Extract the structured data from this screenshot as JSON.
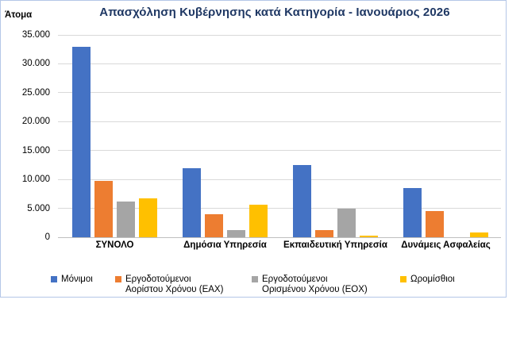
{
  "window": {
    "background_color": "#ffffff",
    "frame_border_color": "#b4c7e7"
  },
  "chart": {
    "title": "Απασχόληση Κυβέρνησης κατά Κατηγορία - Ιανουάριος 2026",
    "y_axis_title": "Άτομα",
    "title_color": "#1f3864"
  },
  "chart_data": {
    "type": "bar",
    "title": "Απασχόληση Κυβέρνησης κατά Κατηγορία - Ιανουάριος 2026",
    "xlabel": "",
    "ylabel": "Άτομα",
    "categories": [
      "ΣΥΝΟΛΟ",
      "Δημόσια Υπηρεσία",
      "Εκπαιδευτική Υπηρεσία",
      "Δυνάμεις Ασφαλείας"
    ],
    "series": [
      {
        "name": "Μόνιμοι",
        "color": "#4472c4",
        "values": [
          33000,
          12000,
          12500,
          8500
        ]
      },
      {
        "name": "Εργοδοτούμενοι Αορίστου Χρόνου (ΕΑΧ)",
        "color": "#ed7d31",
        "values": [
          9700,
          4000,
          1200,
          4500
        ]
      },
      {
        "name": "Εργοδοτούμενοι Ορισμένου Χρόνου (ΕΟΧ)",
        "color": "#a5a5a5",
        "values": [
          6200,
          1300,
          4900,
          0
        ]
      },
      {
        "name": "Ωρομίσθιοι",
        "color": "#ffc000",
        "values": [
          6700,
          5600,
          300,
          800
        ]
      }
    ],
    "ylim": [
      0,
      35000
    ],
    "ytick_step": 5000,
    "ytick_labels": [
      "0",
      "5.000",
      "10.000",
      "15.000",
      "20.000",
      "25.000",
      "30.000",
      "35.000"
    ],
    "grid": true,
    "gridline_color": "#d9d9d9",
    "axis_line_color": "#bfbfbf",
    "legend_position": "bottom",
    "legend": {
      "items": [
        {
          "lines": [
            "Μόνιμοι"
          ]
        },
        {
          "lines": [
            "Εργοδοτούμενοι",
            "Αορίστου Χρόνου (ΕΑΧ)"
          ]
        },
        {
          "lines": [
            "Εργοδοτούμενοι",
            "Ορισμένου Χρόνου (ΕΟΧ)"
          ]
        },
        {
          "lines": [
            "Ωρομίσθιοι"
          ]
        }
      ]
    }
  }
}
